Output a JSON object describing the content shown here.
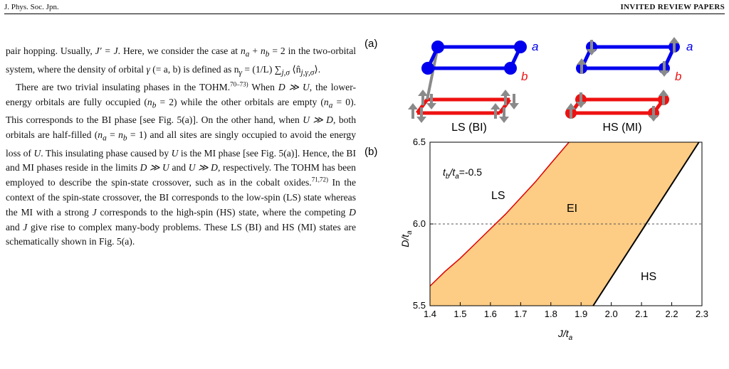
{
  "header": {
    "journal": "J. Phys. Soc. Jpn.",
    "section": "INVITED REVIEW PAPERS"
  },
  "body_text": {
    "p1_a": "pair hopping. Usually, ",
    "p1_b": "J′ = J",
    "p1_c": ". Here, we consider the case at ",
    "p1_d": "n",
    "p1_e": "a",
    "p1_f": " + ",
    "p1_g": "n",
    "p1_h": "b",
    "p1_i": " = 2 in the two-orbital system, where the density of orbital ",
    "p1_j": "γ",
    "p1_k": " (= a, b) is defined as n",
    "p1_l": "γ",
    "p1_m": " = (1/L) ∑",
    "p1_n": "j,σ",
    "p1_o": " ⟨n̂",
    "p1_p": "j,γ,σ",
    "p1_q": "⟩.",
    "p2_a": "There are two trivial insulating phases in the TOHM.",
    "p2_cite1": "70–73)",
    "p2_b": " When ",
    "p2_c": "D ≫ U",
    "p2_d": ", the lower-energy orbitals are fully occupied (",
    "p2_e": "n",
    "p2_f": "b",
    "p2_g": " = 2) while the other orbitals are empty (",
    "p2_h": "n",
    "p2_i": "a",
    "p2_j": " = 0). This corresponds to the BI phase [see Fig. 5(a)]. On the other hand, when ",
    "p2_k": "U ≫ D",
    "p2_l": ", both orbitals are half-filled (",
    "p2_m": "n",
    "p2_n": "a",
    "p2_o": " = ",
    "p2_p": "n",
    "p2_q": "b",
    "p2_r": " = 1) and all sites are singly occupied to avoid the energy loss of ",
    "p2_s": "U",
    "p2_t": ". This insulating phase caused by ",
    "p2_u": "U",
    "p2_v": " is the MI phase [see Fig. 5(a)]. Hence, the BI and MI phases reside in the limits ",
    "p2_w": "D ≫ U",
    "p2_x": " and ",
    "p2_y": "U ≫ D",
    "p2_z": ", respectively. The TOHM has been employed to describe the spin-state crossover, such as in the cobalt oxides.",
    "p2_cite2": "71,72)",
    "p2_aa": " In the context of the spin-state crossover, the BI corresponds to the low-spin (LS) state whereas the MI with a strong ",
    "p2_ab": "J",
    "p2_ac": " corresponds to the high-spin (HS) state, where the competing ",
    "p2_ad": "D",
    "p2_ae": " and ",
    "p2_af": "J",
    "p2_ag": " give rise to complex many-body problems. These LS (BI) and HS (MI) states are schematically shown in Fig. 5(a)."
  },
  "figure": {
    "panel_a": {
      "label": "(a)",
      "orbital_a": "a",
      "orbital_b": "b",
      "ls_caption": "LS (BI)",
      "hs_caption": "HS (MI)",
      "colors": {
        "a": "#0000ee",
        "b": "#ee1111",
        "spin": "#8a8a8a"
      }
    },
    "panel_b": {
      "label": "(b)",
      "param_t": "t",
      "param_b": "b",
      "param_slash": "/t",
      "param_a": "a",
      "param_value": "=-0.5",
      "region_ls": "LS",
      "region_ei": "EI",
      "region_hs": "HS",
      "ei_fill": "#fdcc85",
      "ls_boundary_color": "#dd0000",
      "hs_boundary_color": "#000000"
    }
  },
  "chart_data": {
    "type": "area",
    "xlabel": "J/t_a",
    "ylabel": "D/t_a",
    "xlim": [
      1.4,
      2.3
    ],
    "ylim": [
      5.5,
      6.5
    ],
    "xticks": [
      "1.4",
      "1.5",
      "1.6",
      "1.7",
      "1.8",
      "1.9",
      "2.0",
      "2.1",
      "2.2",
      "2.3"
    ],
    "yticks": [
      "5.5",
      "6.0",
      "6.5"
    ],
    "reference_line_y": 6.0,
    "series": [
      {
        "name": "LS-EI boundary",
        "x": [
          1.4,
          1.45,
          1.5,
          1.55,
          1.6,
          1.65,
          1.7,
          1.75,
          1.8,
          1.86
        ],
        "y": [
          5.62,
          5.71,
          5.79,
          5.88,
          5.97,
          6.06,
          6.16,
          6.26,
          6.37,
          6.5
        ]
      },
      {
        "name": "EI-HS boundary",
        "x": [
          1.94,
          2.11,
          2.29
        ],
        "y": [
          5.5,
          6.0,
          6.5
        ]
      }
    ],
    "regions": [
      "LS",
      "EI",
      "HS"
    ]
  }
}
